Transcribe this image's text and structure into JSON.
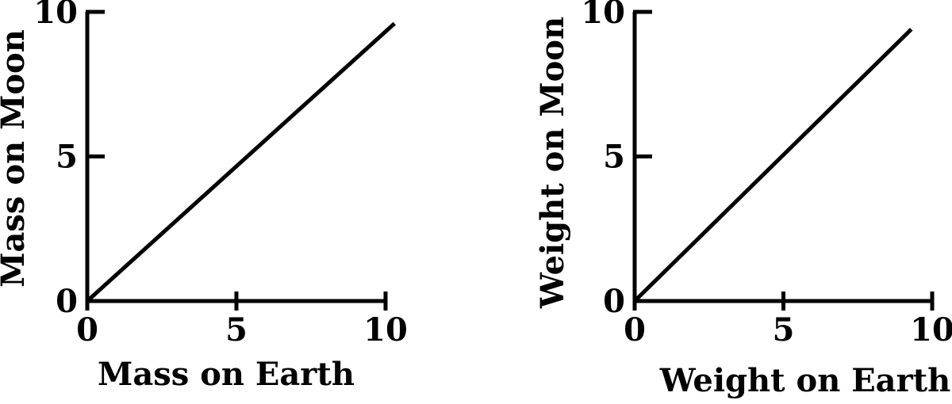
{
  "chart_data": [
    {
      "type": "line",
      "x_label": "Mass on Earth",
      "y_label": "Mass on Moon",
      "x": [
        0,
        10.3
      ],
      "series": [
        {
          "color": "#000000",
          "values": [
            0,
            9.6
          ]
        }
      ],
      "xlim": [
        0,
        10
      ],
      "xticks": [
        0,
        5,
        10
      ],
      "ylim": [
        0,
        10
      ],
      "yticks": [
        0,
        5,
        10
      ]
    },
    {
      "type": "line",
      "x_label": "Weight on Earth",
      "y_label": "Weight on Moon",
      "x": [
        0,
        9.3
      ],
      "series": [
        {
          "color": "#000000",
          "values": [
            0,
            9.4
          ]
        }
      ],
      "xlim": [
        0,
        10
      ],
      "xticks": [
        0,
        5,
        10
      ],
      "ylim": [
        0,
        10
      ],
      "yticks": [
        0,
        5,
        10
      ]
    }
  ]
}
